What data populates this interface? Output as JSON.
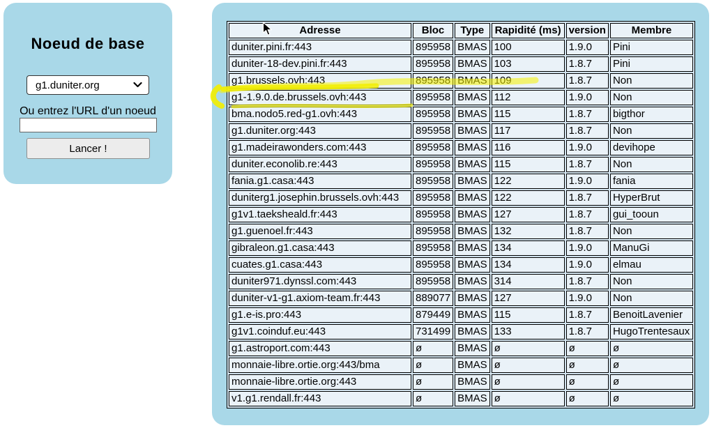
{
  "left_panel": {
    "title": "Noeud de base",
    "node_select": {
      "value": "g1.duniter.org"
    },
    "url_label": "Ou entrez l'URL d'un noeud",
    "url_input": {
      "value": ""
    },
    "launch_button": "Lancer !"
  },
  "table": {
    "headers": [
      "Adresse",
      "Bloc",
      "Type",
      "Rapidité (ms)",
      "version",
      "Membre"
    ],
    "rows": [
      {
        "hl": false,
        "cells": [
          {
            "v": "duniter.pini.fr:443"
          },
          {
            "v": "895958",
            "c": "green"
          },
          {
            "v": "BMAS"
          },
          {
            "v": "100"
          },
          {
            "v": "1.9.0",
            "c": "green"
          },
          {
            "v": "Pini",
            "c": "green"
          }
        ]
      },
      {
        "hl": false,
        "cells": [
          {
            "v": "duniter-18-dev.pini.fr:443"
          },
          {
            "v": "895958",
            "c": "green"
          },
          {
            "v": "BMAS"
          },
          {
            "v": "103"
          },
          {
            "v": "1.8.7",
            "c": "green"
          },
          {
            "v": "Pini",
            "c": "green"
          }
        ]
      },
      {
        "hl": false,
        "cells": [
          {
            "v": "g1.brussels.ovh:443"
          },
          {
            "v": "895958",
            "c": "green"
          },
          {
            "v": "BMAS"
          },
          {
            "v": "109"
          },
          {
            "v": "1.8.7",
            "c": "green"
          },
          {
            "v": "Non",
            "c": "orange"
          }
        ]
      },
      {
        "hl": true,
        "cells": [
          {
            "v": "g1-1.9.0.de.brussels.ovh:443",
            "c": "yellow"
          },
          {
            "v": "895958",
            "c": "green-hl"
          },
          {
            "v": "BMAS",
            "c": "type-hl"
          },
          {
            "v": "112",
            "c": "yellow"
          },
          {
            "v": "1.9.0",
            "c": "version-hl"
          },
          {
            "v": "Non",
            "c": "orange"
          }
        ]
      },
      {
        "hl": false,
        "cells": [
          {
            "v": "bma.nodo5.red-g1.ovh:443"
          },
          {
            "v": "895958",
            "c": "green"
          },
          {
            "v": "BMAS"
          },
          {
            "v": "115"
          },
          {
            "v": "1.8.7",
            "c": "green"
          },
          {
            "v": "bigthor",
            "c": "green"
          }
        ]
      },
      {
        "hl": false,
        "cells": [
          {
            "v": "g1.duniter.org:443"
          },
          {
            "v": "895958",
            "c": "green"
          },
          {
            "v": "BMAS"
          },
          {
            "v": "117"
          },
          {
            "v": "1.8.7",
            "c": "green"
          },
          {
            "v": "Non",
            "c": "orange"
          }
        ]
      },
      {
        "hl": false,
        "cells": [
          {
            "v": "g1.madeirawonders.com:443"
          },
          {
            "v": "895958",
            "c": "green"
          },
          {
            "v": "BMAS"
          },
          {
            "v": "116"
          },
          {
            "v": "1.9.0",
            "c": "green"
          },
          {
            "v": "devihope",
            "c": "green"
          }
        ]
      },
      {
        "hl": false,
        "cells": [
          {
            "v": "duniter.econolib.re:443"
          },
          {
            "v": "895958",
            "c": "green"
          },
          {
            "v": "BMAS"
          },
          {
            "v": "115"
          },
          {
            "v": "1.8.7",
            "c": "green"
          },
          {
            "v": "Non",
            "c": "orange"
          }
        ]
      },
      {
        "hl": false,
        "cells": [
          {
            "v": "fania.g1.casa:443"
          },
          {
            "v": "895958",
            "c": "green"
          },
          {
            "v": "BMAS"
          },
          {
            "v": "122"
          },
          {
            "v": "1.9.0",
            "c": "green"
          },
          {
            "v": "fania",
            "c": "green"
          }
        ]
      },
      {
        "hl": false,
        "cells": [
          {
            "v": "duniterg1.josephin.brussels.ovh:443"
          },
          {
            "v": "895958",
            "c": "green"
          },
          {
            "v": "BMAS"
          },
          {
            "v": "122"
          },
          {
            "v": "1.8.7",
            "c": "green"
          },
          {
            "v": "HyperBrut",
            "c": "green"
          }
        ]
      },
      {
        "hl": false,
        "cells": [
          {
            "v": "g1v1.taeksheald.fr:443"
          },
          {
            "v": "895958",
            "c": "green"
          },
          {
            "v": "BMAS"
          },
          {
            "v": "127"
          },
          {
            "v": "1.8.7",
            "c": "green"
          },
          {
            "v": "gui_tooun",
            "c": "green"
          }
        ]
      },
      {
        "hl": false,
        "cells": [
          {
            "v": "g1.guenoel.fr:443"
          },
          {
            "v": "895958",
            "c": "green"
          },
          {
            "v": "BMAS"
          },
          {
            "v": "132"
          },
          {
            "v": "1.8.7",
            "c": "green"
          },
          {
            "v": "Non",
            "c": "orange"
          }
        ]
      },
      {
        "hl": false,
        "cells": [
          {
            "v": "gibraleon.g1.casa:443"
          },
          {
            "v": "895958",
            "c": "green"
          },
          {
            "v": "BMAS"
          },
          {
            "v": "134"
          },
          {
            "v": "1.9.0",
            "c": "green"
          },
          {
            "v": "ManuGi",
            "c": "green"
          }
        ]
      },
      {
        "hl": false,
        "cells": [
          {
            "v": "cuates.g1.casa:443"
          },
          {
            "v": "895958",
            "c": "green"
          },
          {
            "v": "BMAS"
          },
          {
            "v": "134"
          },
          {
            "v": "1.9.0",
            "c": "green"
          },
          {
            "v": "elmau",
            "c": "green"
          }
        ]
      },
      {
        "hl": false,
        "cells": [
          {
            "v": "duniter971.dynssl.com:443"
          },
          {
            "v": "895958",
            "c": "green"
          },
          {
            "v": "BMAS"
          },
          {
            "v": "314"
          },
          {
            "v": "1.8.7",
            "c": "green"
          },
          {
            "v": "Non",
            "c": "orange"
          }
        ]
      },
      {
        "hl": false,
        "cells": [
          {
            "v": "duniter-v1-g1.axiom-team.fr:443"
          },
          {
            "v": "889077",
            "c": "orange"
          },
          {
            "v": "BMAS"
          },
          {
            "v": "127"
          },
          {
            "v": "1.9.0",
            "c": "green"
          },
          {
            "v": "Non",
            "c": "orange"
          }
        ]
      },
      {
        "hl": false,
        "cells": [
          {
            "v": "g1.e-is.pro:443"
          },
          {
            "v": "879449",
            "c": "orange"
          },
          {
            "v": "BMAS"
          },
          {
            "v": "115"
          },
          {
            "v": "1.8.7",
            "c": "green"
          },
          {
            "v": "BenoitLavenier",
            "c": "green"
          }
        ]
      },
      {
        "hl": false,
        "cells": [
          {
            "v": "g1v1.coinduf.eu:443"
          },
          {
            "v": "731499",
            "c": "orange"
          },
          {
            "v": "BMAS"
          },
          {
            "v": "133"
          },
          {
            "v": "1.8.7",
            "c": "green"
          },
          {
            "v": "HugoTrentesaux",
            "c": "green"
          }
        ]
      },
      {
        "hl": false,
        "cells": [
          {
            "v": "g1.astroport.com:443"
          },
          {
            "v": "ø"
          },
          {
            "v": "BMAS"
          },
          {
            "v": "ø"
          },
          {
            "v": "ø"
          },
          {
            "v": "ø"
          }
        ]
      },
      {
        "hl": false,
        "cells": [
          {
            "v": "monnaie-libre.ortie.org:443/bma"
          },
          {
            "v": "ø"
          },
          {
            "v": "BMAS"
          },
          {
            "v": "ø"
          },
          {
            "v": "ø"
          },
          {
            "v": "ø"
          }
        ]
      },
      {
        "hl": false,
        "cells": [
          {
            "v": "monnaie-libre.ortie.org:443"
          },
          {
            "v": "ø"
          },
          {
            "v": "BMAS"
          },
          {
            "v": "ø"
          },
          {
            "v": "ø"
          },
          {
            "v": "ø"
          }
        ]
      },
      {
        "hl": false,
        "cells": [
          {
            "v": "v1.g1.rendall.fr:443"
          },
          {
            "v": "ø"
          },
          {
            "v": "BMAS"
          },
          {
            "v": "ø"
          },
          {
            "v": "ø"
          },
          {
            "v": "ø"
          }
        ]
      }
    ]
  },
  "annotations": {
    "highlighted_address": "g1-1.9.0.de.brussels.ovh:443",
    "marker_color": "#f2ee00"
  },
  "colors": {
    "panel_bg": "#a9d8e8",
    "cell_bg": "#eaf2f8",
    "green": "#90ee90",
    "orange": "#ffa500",
    "yellow": "#f4ef00"
  }
}
